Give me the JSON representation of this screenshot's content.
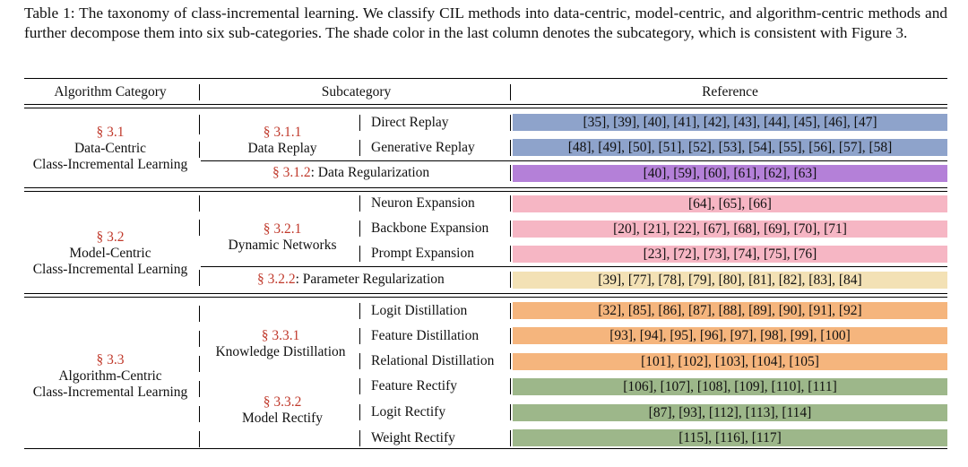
{
  "caption": "Table 1: The taxonomy of class-incremental learning. We classify CIL methods into data-centric, model-centric, and algorithm-centric methods and further decompose them into six sub-categories. The shade color in the last column denotes the subcategory, which is consistent with Figure 3.",
  "header": {
    "category": "Algorithm Category",
    "subcategory": "Subcategory",
    "reference": "Reference"
  },
  "colors": {
    "data_replay": "#8ea3cb",
    "data_regularization": "#b480d8",
    "dynamic_networks": "#f6b6c4",
    "parameter_regularization": "#f3e1b5",
    "knowledge_distillation": "#f5b57d",
    "model_rectify": "#9db78a",
    "section_link": "#c0392b"
  },
  "groups": {
    "data": {
      "section": "§ 3.1",
      "line1": "Data-Centric",
      "line2": "Class-Incremental Learning",
      "replay": {
        "section": "§ 3.1.1",
        "name": "Data Replay",
        "items": [
          {
            "method": "Direct Replay",
            "refs": "[35], [39], [40], [41], [42], [43], [44], [45], [46], [47]"
          },
          {
            "method": "Generative Replay",
            "refs": "[48], [49], [50], [51], [52], [53], [54], [55], [56], [57], [58]"
          }
        ]
      },
      "regularization": {
        "section": "§ 3.1.2",
        "name": ": Data Regularization",
        "refs": "[40], [59], [60], [61], [62], [63]"
      }
    },
    "model": {
      "section": "§ 3.2",
      "line1": "Model-Centric",
      "line2": "Class-Incremental Learning",
      "dynamic": {
        "section": "§ 3.2.1",
        "name": "Dynamic Networks",
        "items": [
          {
            "method": "Neuron Expansion",
            "refs": "[64], [65], [66]"
          },
          {
            "method": "Backbone Expansion",
            "refs": "[20], [21], [22], [67], [68], [69], [70], [71]"
          },
          {
            "method": "Prompt Expansion",
            "refs": "[23], [72], [73], [74], [75], [76]"
          }
        ]
      },
      "regularization": {
        "section": "§ 3.2.2",
        "name": ": Parameter Regularization",
        "refs": "[39], [77], [78], [79], [80], [81], [82], [83], [84]"
      }
    },
    "algorithm": {
      "section": "§ 3.3",
      "line1": "Algorithm-Centric",
      "line2": "Class-Incremental Learning",
      "distillation": {
        "section": "§ 3.3.1",
        "name": "Knowledge Distillation",
        "items": [
          {
            "method": "Logit Distillation",
            "refs": "[32], [85], [86], [87], [88], [89], [90], [91], [92]"
          },
          {
            "method": "Feature Distillation",
            "refs": "[93], [94], [95], [96], [97], [98], [99], [100]"
          },
          {
            "method": "Relational Distillation",
            "refs": "[101], [102], [103], [104], [105]"
          }
        ]
      },
      "rectify": {
        "section": "§ 3.3.2",
        "name": "Model Rectify",
        "items": [
          {
            "method": "Feature Rectify",
            "refs": "[106], [107], [108], [109], [110], [111]"
          },
          {
            "method": "Logit Rectify",
            "refs": "[87], [93], [112], [113], [114]"
          },
          {
            "method": "Weight Rectify",
            "refs": "[115], [116], [117]"
          }
        ]
      }
    }
  }
}
